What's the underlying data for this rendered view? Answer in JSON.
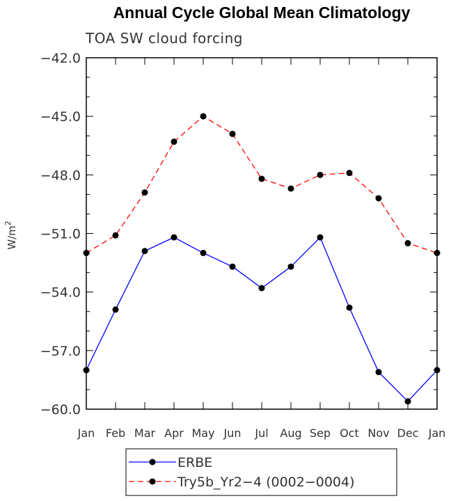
{
  "chart_data": {
    "type": "line",
    "title": "Annual Cycle Global Mean Climatology",
    "subtitle": "TOA SW cloud forcing",
    "ylabel": "W/m",
    "ylabel_sup": "2",
    "xlabel": "",
    "categories": [
      "Jan",
      "Feb",
      "Mar",
      "Apr",
      "May",
      "Jun",
      "Jul",
      "Aug",
      "Sep",
      "Oct",
      "Nov",
      "Dec",
      "Jan"
    ],
    "ylim": [
      -60.0,
      -42.0
    ],
    "yticks": [
      -42.0,
      -45.0,
      -48.0,
      -51.0,
      -54.0,
      -57.0,
      -60.0
    ],
    "ytick_labels": [
      "−42.0",
      "−45.0",
      "−48.0",
      "−51.0",
      "−54.0",
      "−57.0",
      "−60.0"
    ],
    "series": [
      {
        "name": "ERBE",
        "color": "#0000ff",
        "dash": "solid",
        "values": [
          -58.0,
          -54.9,
          -51.9,
          -51.2,
          -52.0,
          -52.7,
          -53.8,
          -52.7,
          -51.2,
          -54.8,
          -58.1,
          -59.6,
          -58.0
        ]
      },
      {
        "name": "Try5b_Yr2−4 (0002−0004)",
        "color": "#ff0000",
        "dash": "dashed",
        "values": [
          -52.0,
          -51.1,
          -48.9,
          -46.3,
          -45.0,
          -45.9,
          -48.2,
          -48.7,
          -48.0,
          -47.9,
          -49.2,
          -51.5,
          -52.0
        ]
      }
    ]
  }
}
